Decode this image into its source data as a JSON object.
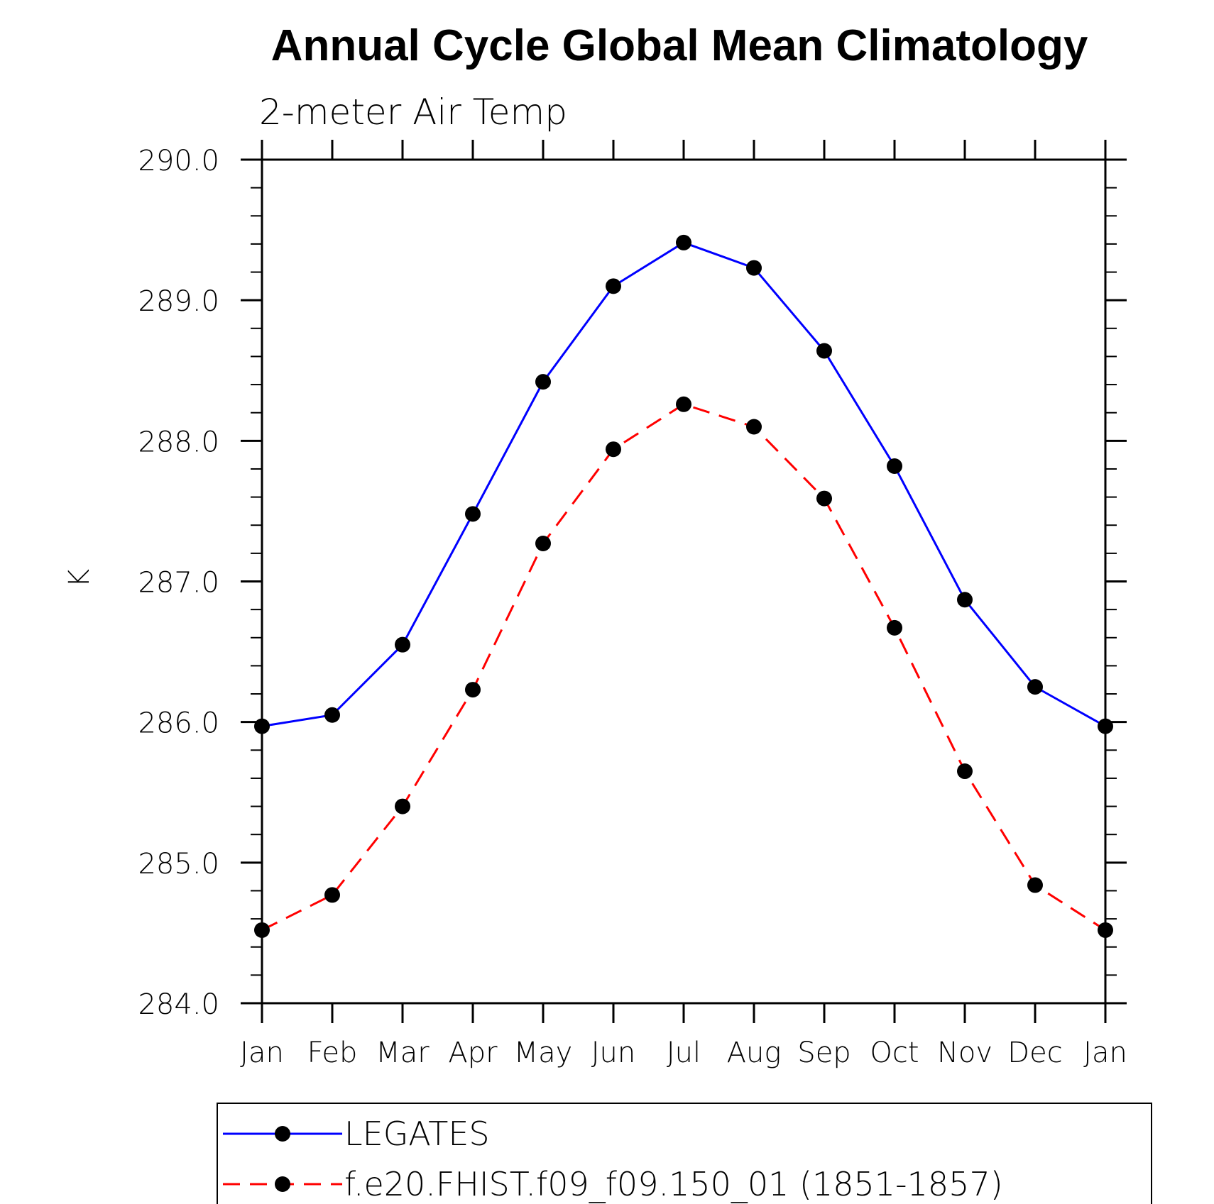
{
  "chart_data": {
    "type": "line",
    "title": "Annual Cycle Global Mean Climatology",
    "subtitle": "2-meter Air Temp",
    "ylabel": "K",
    "xlabel": "",
    "categories": [
      "Jan",
      "Feb",
      "Mar",
      "Apr",
      "May",
      "Jun",
      "Jul",
      "Aug",
      "Sep",
      "Oct",
      "Nov",
      "Dec",
      "Jan"
    ],
    "ylim": [
      284.0,
      290.0
    ],
    "yticks": [
      "284.0",
      "285.0",
      "286.0",
      "287.0",
      "288.0",
      "289.0",
      "290.0"
    ],
    "ytick_values": [
      284.0,
      285.0,
      286.0,
      287.0,
      288.0,
      289.0,
      290.0
    ],
    "grid": false,
    "legend_position": "bottom",
    "series": [
      {
        "name": "LEGATES",
        "color": "#0000ff",
        "line_style": "solid",
        "marker": "filled-circle",
        "values": [
          285.97,
          286.05,
          286.55,
          287.48,
          288.42,
          289.1,
          289.41,
          289.23,
          288.64,
          287.82,
          286.87,
          286.25,
          285.97
        ]
      },
      {
        "name": "f.e20.FHIST.f09_f09.150_01 (1851-1857)",
        "color": "#ff0000",
        "line_style": "dashed",
        "marker": "filled-circle",
        "values": [
          284.52,
          284.77,
          285.4,
          286.23,
          287.27,
          287.94,
          288.26,
          288.1,
          287.59,
          286.67,
          285.65,
          284.84,
          284.52
        ]
      }
    ]
  }
}
